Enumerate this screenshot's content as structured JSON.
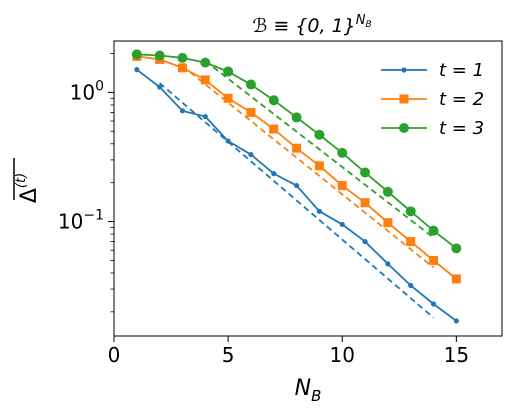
{
  "chart_data": {
    "type": "line",
    "title": "ℬ ≡ {0, 1}",
    "title_superscript": "N",
    "title_superscript_sub": "B",
    "xlabel": "N",
    "xlabel_sub": "B",
    "ylabel": "Δ",
    "ylabel_superscript": "(t)",
    "xlim": [
      0,
      17
    ],
    "ylim": [
      0.013,
      2.5
    ],
    "yscale": "log",
    "grid": false,
    "legend_position": "top-right",
    "x_ticks": [
      0,
      5,
      10,
      15
    ],
    "x_tick_labels": [
      "0",
      "5",
      "10",
      "15"
    ],
    "y_ticks": [
      {
        "value": 1,
        "base": "10",
        "exp": "0"
      },
      {
        "value": 0.1,
        "base": "10",
        "exp": "−1"
      }
    ],
    "series": [
      {
        "name": "t = 1",
        "color": "#1f77b4",
        "marker": "dot",
        "x": [
          1,
          2,
          3,
          4,
          5,
          6,
          7,
          8,
          9,
          10,
          11,
          12,
          13,
          14,
          15
        ],
        "values": [
          1.5,
          1.1,
          0.72,
          0.65,
          0.42,
          0.33,
          0.235,
          0.19,
          0.12,
          0.095,
          0.07,
          0.047,
          0.032,
          0.023,
          0.017
        ],
        "fit_x": [
          2,
          14
        ],
        "fit_values": [
          1.18,
          0.018
        ]
      },
      {
        "name": "t = 2",
        "color": "#ff7f0e",
        "marker": "square",
        "x": [
          1,
          2,
          3,
          4,
          5,
          6,
          7,
          8,
          9,
          10,
          11,
          12,
          13,
          14,
          15
        ],
        "values": [
          1.9,
          1.8,
          1.55,
          1.25,
          0.9,
          0.7,
          0.52,
          0.37,
          0.27,
          0.19,
          0.14,
          0.098,
          0.07,
          0.05,
          0.036
        ],
        "fit_x": [
          3,
          14
        ],
        "fit_values": [
          1.6,
          0.044
        ]
      },
      {
        "name": "t = 3",
        "color": "#2ca02c",
        "marker": "circle",
        "x": [
          1,
          2,
          3,
          4,
          5,
          6,
          7,
          8,
          9,
          10,
          11,
          12,
          13,
          14,
          15
        ],
        "values": [
          1.97,
          1.93,
          1.85,
          1.7,
          1.45,
          1.15,
          0.87,
          0.64,
          0.47,
          0.34,
          0.24,
          0.17,
          0.12,
          0.085,
          0.062
        ],
        "fit_x": [
          4,
          14
        ],
        "fit_values": [
          1.75,
          0.075
        ]
      }
    ]
  }
}
